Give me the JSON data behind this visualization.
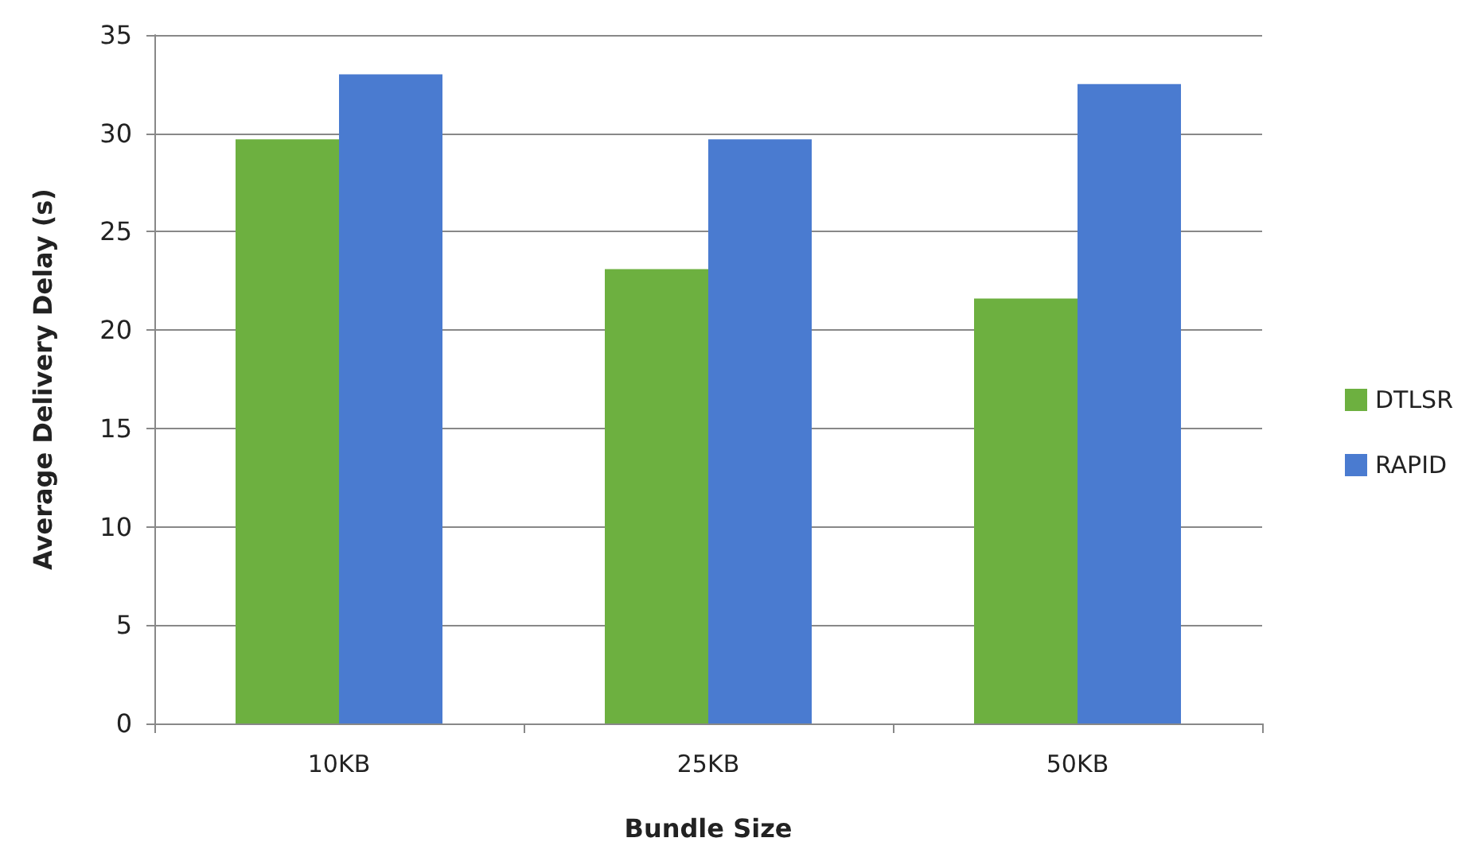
{
  "chart_data": {
    "type": "bar",
    "xlabel": "Bundle Size",
    "ylabel": "Average Delivery Delay (s)",
    "categories": [
      "10KB",
      "25KB",
      "50KB"
    ],
    "series": [
      {
        "name": "DTLSR",
        "color": "#6db040",
        "values": [
          29.7,
          23.1,
          21.6
        ]
      },
      {
        "name": "RAPID",
        "color": "#4a7bd0",
        "values": [
          33,
          29.7,
          32.5
        ]
      }
    ],
    "ylim": [
      0,
      35
    ],
    "yticks": [
      0,
      5,
      10,
      15,
      20,
      25,
      30,
      35
    ],
    "grid": "y",
    "legend": "right"
  }
}
